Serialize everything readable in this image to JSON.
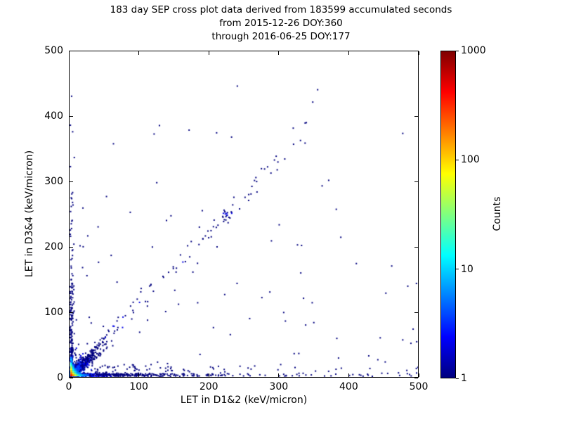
{
  "title": {
    "line1": "183 day SEP cross plot data derived from 183599 accumulated seconds",
    "line2": "from 2015-12-26 DOY:360",
    "line3": "through 2016-06-25 DOY:177"
  },
  "chart_data": {
    "type": "scatter",
    "subtype": "2d-histogram-density",
    "title": "183 day SEP cross plot data derived from 183599 accumulated seconds from 2015-12-26 DOY:360 through 2016-06-25 DOY:177",
    "xlabel": "LET in D1&2 (keV/micron)",
    "ylabel": "LET in D3&4 (keV/micron)",
    "xlim": [
      0,
      500
    ],
    "ylim": [
      0,
      500
    ],
    "xticks": [
      0,
      100,
      200,
      300,
      400,
      500
    ],
    "yticks": [
      0,
      100,
      200,
      300,
      400,
      500
    ],
    "grid": false,
    "colorbar": {
      "label": "Counts",
      "scale": "log",
      "range": [
        1,
        1000
      ],
      "ticks": [
        1,
        10,
        100,
        1000
      ],
      "tick_labels": [
        "1",
        "10",
        "100",
        "1000"
      ],
      "colormap": "jet",
      "colormap_stops": [
        [
          0,
          "#00007f"
        ],
        [
          0.125,
          "#0000ff"
        ],
        [
          0.375,
          "#00ffff"
        ],
        [
          0.625,
          "#ffff00"
        ],
        [
          0.875,
          "#ff0000"
        ],
        [
          1,
          "#7f0000"
        ]
      ]
    },
    "point_size": 2,
    "min_count_color": "#00007f",
    "seed": 7,
    "hot_cells": [
      [
        1,
        1,
        350
      ],
      [
        1,
        4,
        180
      ],
      [
        4,
        1,
        140
      ],
      [
        1,
        7,
        110
      ],
      [
        4,
        4,
        60
      ],
      [
        7,
        1,
        60
      ],
      [
        1,
        10,
        70
      ],
      [
        1,
        13,
        40
      ],
      [
        4,
        7,
        25
      ],
      [
        7,
        4,
        20
      ],
      [
        10,
        1,
        25
      ],
      [
        1,
        16,
        20
      ],
      [
        13,
        1,
        12
      ],
      [
        4,
        10,
        12
      ],
      [
        7,
        7,
        10
      ],
      [
        10,
        4,
        8
      ],
      [
        1,
        19,
        12
      ],
      [
        16,
        1,
        8
      ],
      [
        4,
        13,
        8
      ],
      [
        2,
        22,
        6
      ],
      [
        22,
        1,
        5
      ],
      [
        7,
        10,
        6
      ],
      [
        10,
        7,
        5
      ],
      [
        4,
        16,
        5
      ],
      [
        1,
        25,
        8
      ],
      [
        1,
        28,
        5
      ],
      [
        25,
        1,
        4
      ],
      [
        13,
        4,
        6
      ],
      [
        19,
        1,
        6
      ]
    ],
    "clusters": [
      {
        "type": "diag_blob",
        "n": 1200,
        "scale": 11,
        "spread": 6,
        "xmax": 75,
        "ymax": 75,
        "count_scale": 14,
        "count_decay": 22
      },
      {
        "type": "band_x",
        "n": 420,
        "scale": 55,
        "xmax": 500,
        "ymax": 4,
        "count_scale": 8,
        "count_decay": 30
      },
      {
        "type": "band_x",
        "n": 90,
        "scale": 400,
        "xmax": 500,
        "ymax": 5,
        "count_scale": 0,
        "count_decay": 1
      },
      {
        "type": "band_x",
        "n": 120,
        "scale": 120,
        "xmax": 400,
        "ymax": 18,
        "count_scale": 0,
        "count_decay": 1
      },
      {
        "type": "band_y",
        "n": 200,
        "scale": 60,
        "ymax": 440,
        "xmax": 4,
        "count_scale": 6,
        "count_decay": 25
      },
      {
        "type": "band_y",
        "n": 40,
        "scale": 300,
        "ymax": 450,
        "xmax": 6,
        "count_scale": 0,
        "count_decay": 1
      },
      {
        "type": "diag_band",
        "n": 85,
        "xmin": 25,
        "xmax": 340,
        "slope": 1.12,
        "noise": 13
      },
      {
        "type": "blob",
        "cx": 226,
        "cy": 246,
        "n": 13,
        "spread": 9
      },
      {
        "type": "uniform",
        "n": 90,
        "xmax": 500,
        "ymax": 260,
        "bias": 1.8
      },
      {
        "type": "uniform",
        "n": 25,
        "xmax": 500,
        "ymax": 480,
        "bias": 1.3
      }
    ],
    "outlier_points": [
      [
        355,
        440
      ],
      [
        348,
        421
      ],
      [
        337,
        358
      ],
      [
        320,
        381
      ],
      [
        298,
        329
      ],
      [
        297,
        317
      ],
      [
        288,
        312
      ],
      [
        268,
        283
      ],
      [
        256,
        270
      ],
      [
        243,
        257
      ],
      [
        212,
        232
      ],
      [
        176,
        160
      ],
      [
        150,
        132
      ],
      [
        128,
        385
      ],
      [
        62,
        357
      ],
      [
        52,
        276
      ],
      [
        483,
        9
      ],
      [
        497,
        5
      ],
      [
        452,
        22
      ],
      [
        430,
        12
      ],
      [
        385,
        28
      ],
      [
        352,
        8
      ],
      [
        328,
        35
      ],
      [
        302,
        18
      ],
      [
        2,
        430
      ]
    ]
  },
  "layout_colors": {
    "background": "#ffffff",
    "frame": "#000000",
    "text": "#000000"
  }
}
